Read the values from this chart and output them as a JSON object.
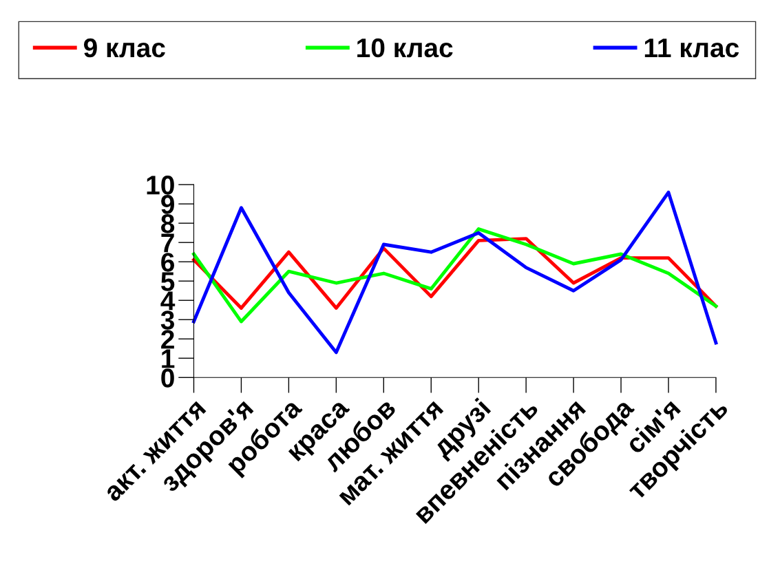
{
  "chart_data": {
    "type": "line",
    "categories": [
      "акт. життя",
      "здоров'я",
      "робота",
      "краса",
      "любов",
      "мат. життя",
      "друзі",
      "впевненість",
      "пізнання",
      "свобода",
      "сім'я",
      "творчість"
    ],
    "series": [
      {
        "name": "9 клас",
        "color": "#ff0000",
        "values": [
          6.1,
          3.6,
          6.5,
          3.6,
          6.7,
          4.2,
          7.1,
          7.2,
          4.9,
          6.2,
          6.2,
          3.7
        ]
      },
      {
        "name": "10 клас",
        "color": "#00ff00",
        "values": [
          6.4,
          2.9,
          5.5,
          4.9,
          5.4,
          4.6,
          7.7,
          6.9,
          5.9,
          6.4,
          5.4,
          3.7
        ]
      },
      {
        "name": "11 клас",
        "color": "#0000ff",
        "values": [
          2.9,
          8.8,
          4.4,
          1.3,
          6.9,
          6.5,
          7.5,
          5.7,
          4.5,
          6.1,
          9.6,
          1.8
        ]
      }
    ],
    "ylim": [
      0,
      10
    ],
    "yticks": [
      0,
      1,
      2,
      3,
      4,
      5,
      6,
      7,
      8,
      9,
      10
    ],
    "legend": "top",
    "grid": false,
    "marker": "none",
    "line_style": "solid"
  }
}
